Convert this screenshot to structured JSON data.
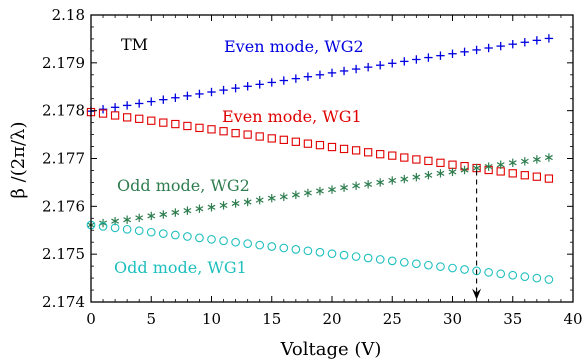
{
  "chart_data": {
    "type": "scatter",
    "xlabel": "Voltage (V)",
    "ylabel": "β /(2π/λ)",
    "xlim": [
      0,
      40
    ],
    "ylim": [
      2.174,
      2.18
    ],
    "xticks": [
      0,
      5,
      10,
      15,
      20,
      25,
      30,
      35,
      40
    ],
    "xtick_labels": [
      "0",
      "5",
      "10",
      "15",
      "20",
      "25",
      "30",
      "35",
      "40"
    ],
    "yticks": [
      2.174,
      2.175,
      2.176,
      2.177,
      2.178,
      2.179,
      2.18
    ],
    "ytick_labels": [
      "2.174",
      "2.175",
      "2.176",
      "2.177",
      "2.178",
      "2.179",
      "2.18"
    ],
    "grid": false,
    "legend": "none",
    "series": [
      {
        "name": "Even mode, WG2",
        "marker": "plus",
        "color": "#0000e0",
        "x": [
          0,
          1,
          2,
          3,
          4,
          5,
          6,
          7,
          8,
          9,
          10,
          11,
          12,
          13,
          14,
          15,
          16,
          17,
          18,
          19,
          20,
          21,
          22,
          23,
          24,
          25,
          26,
          27,
          28,
          29,
          30,
          31,
          32,
          33,
          34,
          35,
          36,
          37,
          38
        ],
        "y": [
          2.17799,
          2.17803,
          2.17807,
          2.17811,
          2.17815,
          2.17819,
          2.17823,
          2.17827,
          2.17831,
          2.17835,
          2.17839,
          2.17843,
          2.17847,
          2.17851,
          2.17855,
          2.17859,
          2.17863,
          2.17867,
          2.17871,
          2.17875,
          2.17879,
          2.17883,
          2.17887,
          2.17891,
          2.17895,
          2.17899,
          2.17903,
          2.17907,
          2.17911,
          2.17915,
          2.17919,
          2.17923,
          2.17927,
          2.17931,
          2.17935,
          2.17939,
          2.17943,
          2.17947,
          2.17951
        ]
      },
      {
        "name": "Even mode, WG1",
        "marker": "square",
        "color": "#e00000",
        "x": [
          0,
          1,
          2,
          3,
          4,
          5,
          6,
          7,
          8,
          9,
          10,
          11,
          12,
          13,
          14,
          15,
          16,
          17,
          18,
          19,
          20,
          21,
          22,
          23,
          24,
          25,
          26,
          27,
          28,
          29,
          30,
          31,
          32,
          33,
          34,
          35,
          36,
          37,
          38
        ],
        "y": [
          2.17797,
          2.17794,
          2.1779,
          2.17786,
          2.17783,
          2.17779,
          2.17775,
          2.17772,
          2.17768,
          2.17764,
          2.17761,
          2.17757,
          2.17753,
          2.1775,
          2.17746,
          2.17742,
          2.17739,
          2.17735,
          2.17731,
          2.17728,
          2.17724,
          2.1772,
          2.17717,
          2.17713,
          2.17709,
          2.17706,
          2.17702,
          2.17698,
          2.17695,
          2.17691,
          2.17687,
          2.17684,
          2.1768,
          2.17676,
          2.17673,
          2.17669,
          2.17665,
          2.17662,
          2.17658
        ]
      },
      {
        "name": "Odd mode, WG2",
        "marker": "asterisk",
        "color": "#2e7d4f",
        "x": [
          0,
          1,
          2,
          3,
          4,
          5,
          6,
          7,
          8,
          9,
          10,
          11,
          12,
          13,
          14,
          15,
          16,
          17,
          18,
          19,
          20,
          21,
          22,
          23,
          24,
          25,
          26,
          27,
          28,
          29,
          30,
          31,
          32,
          33,
          34,
          35,
          36,
          37,
          38
        ],
        "y": [
          2.17561,
          2.17565,
          2.17569,
          2.17572,
          2.17576,
          2.1758,
          2.17583,
          2.17587,
          2.17591,
          2.17595,
          2.17598,
          2.17602,
          2.17606,
          2.17609,
          2.17613,
          2.17617,
          2.1762,
          2.17624,
          2.17628,
          2.17632,
          2.17635,
          2.17639,
          2.17643,
          2.17646,
          2.1765,
          2.17654,
          2.17657,
          2.17661,
          2.17665,
          2.17669,
          2.17672,
          2.17676,
          2.1768,
          2.17683,
          2.17687,
          2.17691,
          2.17694,
          2.17698,
          2.17702
        ]
      },
      {
        "name": "Odd mode, WG1",
        "marker": "circle",
        "color": "#1fbfbf",
        "x": [
          0,
          1,
          2,
          3,
          4,
          5,
          6,
          7,
          8,
          9,
          10,
          11,
          12,
          13,
          14,
          15,
          16,
          17,
          18,
          19,
          20,
          21,
          22,
          23,
          24,
          25,
          26,
          27,
          28,
          29,
          30,
          31,
          32,
          33,
          34,
          35,
          36,
          37,
          38
        ],
        "y": [
          2.17561,
          2.17558,
          2.17555,
          2.17552,
          2.17549,
          2.17546,
          2.17543,
          2.1754,
          2.17537,
          2.17534,
          2.17531,
          2.17528,
          2.17525,
          2.17522,
          2.17519,
          2.17516,
          2.17513,
          2.1751,
          2.17507,
          2.17504,
          2.17501,
          2.17498,
          2.17495,
          2.17492,
          2.17489,
          2.17486,
          2.17483,
          2.1748,
          2.17477,
          2.17474,
          2.17471,
          2.17468,
          2.17465,
          2.17462,
          2.17459,
          2.17456,
          2.17453,
          2.1745,
          2.17447
        ]
      }
    ],
    "annotations": {
      "mode_label": "TM",
      "even_wg2": "Even mode, WG2",
      "even_wg1": "Even mode, WG1",
      "odd_wg2": "Odd mode, WG2",
      "odd_wg1": "Odd mode, WG1"
    },
    "arrow": {
      "x": 32,
      "y_from": 2.17675,
      "y_to": 2.17405,
      "style": "dashed"
    }
  },
  "colors": {
    "even_wg2": "#0000e0",
    "even_wg1": "#e00000",
    "odd_wg2": "#2e7d4f",
    "odd_wg1": "#1fbfbf"
  }
}
